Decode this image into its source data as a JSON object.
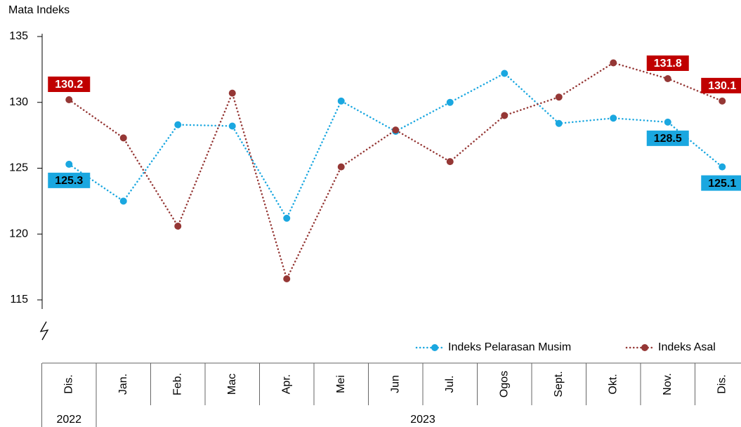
{
  "chart_data": {
    "type": "line",
    "y_axis_label": "Mata Indeks",
    "categories": [
      "Dis.",
      "Jan.",
      "Feb.",
      "Mac",
      "Apr.",
      "Mei",
      "Jun",
      "Jul.",
      "Ogos",
      "Sept.",
      "Okt.",
      "Nov.",
      "Dis."
    ],
    "years": [
      "2022",
      "2023"
    ],
    "series": [
      {
        "name": "Indeks Pelarasan Musim",
        "color": "#1aa7e0",
        "label_color": "#1aa7e0",
        "label_text_color": "#000000",
        "values": [
          125.3,
          122.5,
          128.3,
          128.2,
          121.2,
          130.1,
          127.8,
          130.0,
          132.2,
          128.4,
          128.8,
          128.5,
          125.1
        ],
        "value_labels": [
          "125.3",
          null,
          null,
          null,
          null,
          null,
          null,
          null,
          null,
          null,
          null,
          "128.5",
          "125.1"
        ]
      },
      {
        "name": "Indeks Asal",
        "color": "#953735",
        "label_color": "#c00000",
        "label_text_color": "#ffffff",
        "values": [
          130.2,
          127.3,
          120.6,
          130.7,
          116.6,
          125.1,
          127.9,
          125.5,
          129.0,
          130.4,
          133.0,
          131.8,
          130.1
        ],
        "value_labels": [
          "130.2",
          null,
          null,
          null,
          null,
          null,
          null,
          null,
          null,
          null,
          null,
          "131.8",
          "130.1"
        ]
      }
    ],
    "ylim": [
      115,
      135
    ],
    "yticks": [
      115,
      120,
      125,
      130,
      135
    ],
    "grid": false,
    "legend": "bottom-right"
  }
}
